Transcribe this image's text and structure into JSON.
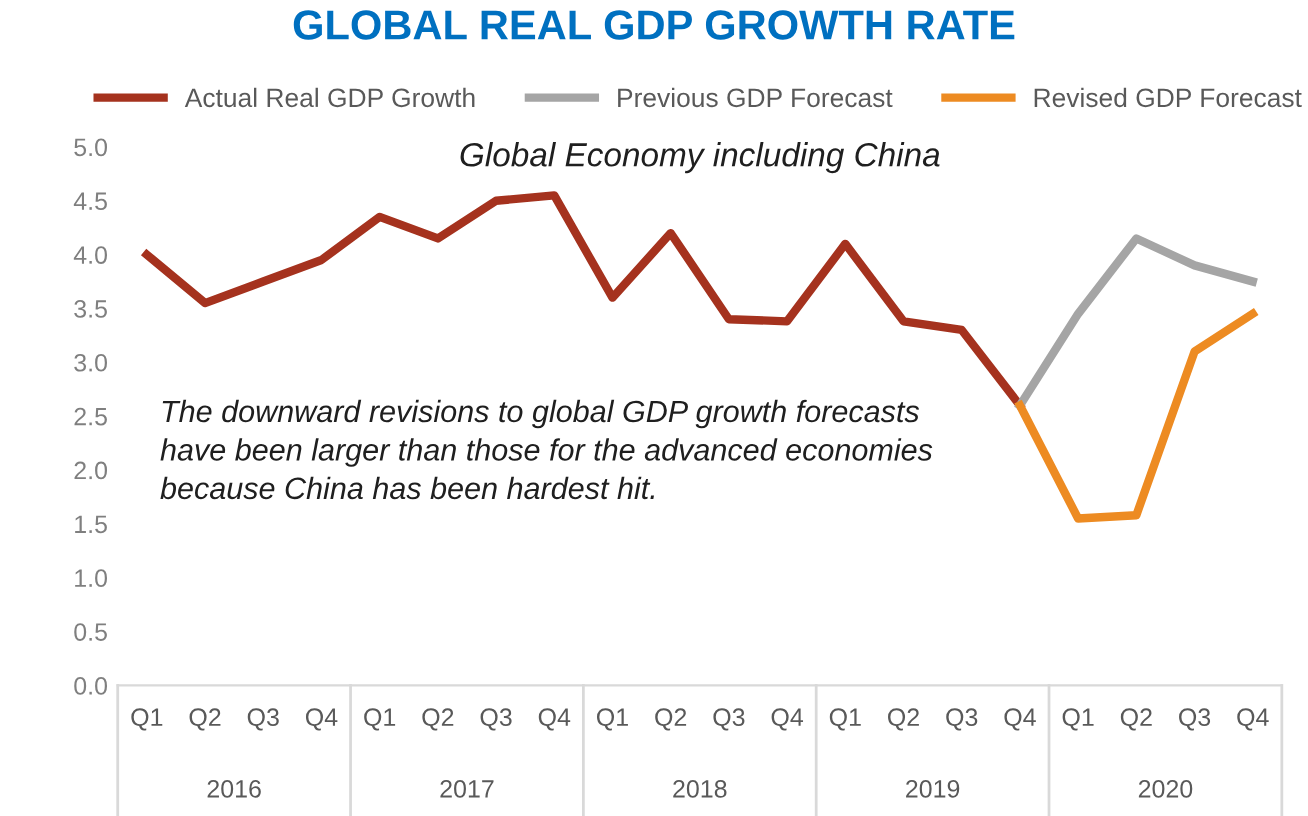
{
  "chart_data": {
    "type": "line",
    "title": "GLOBAL REAL GDP GROWTH RATE",
    "subtitle": "Global Economy including China",
    "categories": [
      "Q1",
      "Q2",
      "Q3",
      "Q4",
      "Q1",
      "Q2",
      "Q3",
      "Q4",
      "Q1",
      "Q2",
      "Q3",
      "Q4",
      "Q1",
      "Q2",
      "Q3",
      "Q4",
      "Q1",
      "Q2",
      "Q3",
      "Q4"
    ],
    "series": [
      {
        "name": "Actual Real GDP Growth",
        "color": "#a5321e",
        "values": [
          4.0,
          3.55,
          3.75,
          3.95,
          4.35,
          4.15,
          4.5,
          4.55,
          3.6,
          4.2,
          3.4,
          3.38,
          4.1,
          3.38,
          3.3,
          2.6,
          null,
          null,
          null,
          null
        ]
      },
      {
        "name": "Previous GDP Forecast",
        "color": "#a5a5a5",
        "values": [
          null,
          null,
          null,
          null,
          null,
          null,
          null,
          null,
          null,
          null,
          null,
          null,
          null,
          null,
          null,
          2.6,
          3.45,
          4.15,
          3.9,
          3.75
        ]
      },
      {
        "name": "Revised GDP Forecast",
        "color": "#ed8b22",
        "values": [
          null,
          null,
          null,
          null,
          null,
          null,
          null,
          null,
          null,
          null,
          null,
          null,
          null,
          null,
          null,
          2.6,
          1.55,
          1.58,
          3.1,
          3.45
        ]
      }
    ],
    "annotations": [
      "The downward revisions to global GDP growth forecasts have been larger than those for the advanced economies because China has been hardest hit.",
      "2016",
      "2017",
      "2018",
      "2019",
      "2020"
    ],
    "ylim": [
      0,
      5
    ],
    "yticks": [
      {
        "value": 0,
        "label": "0.0"
      },
      {
        "value": 0.5,
        "label": "0.5"
      },
      {
        "value": 1,
        "label": "1.0"
      },
      {
        "value": 1.5,
        "label": "1.5"
      },
      {
        "value": 2,
        "label": "2.0"
      },
      {
        "value": 2.5,
        "label": "2.5"
      },
      {
        "value": 3,
        "label": "3.0"
      },
      {
        "value": 3.5,
        "label": "3.5"
      },
      {
        "value": 4,
        "label": "4.0"
      },
      {
        "value": 4.5,
        "label": "4.5"
      },
      {
        "value": 5,
        "label": "5.0"
      }
    ],
    "grid": false,
    "legend": "top",
    "line_style": "solid",
    "marker": "none"
  }
}
